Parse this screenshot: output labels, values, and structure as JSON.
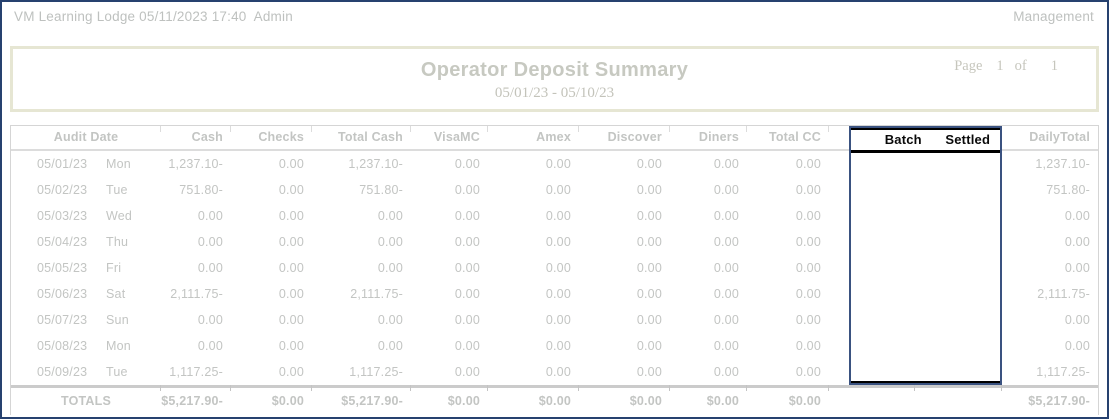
{
  "topbar": {
    "left": "VM Learning Lodge 05/11/2023 17:40  Admin",
    "right": "Management"
  },
  "report_header": {
    "title": "Operator Deposit Summary",
    "date_range": "05/01/23 - 05/10/23",
    "page_label": "Page",
    "page_number": "1",
    "of_label": "of",
    "page_total": "1"
  },
  "table": {
    "columns": [
      {
        "key": "audit_date",
        "label": "Audit Date",
        "align": "center",
        "highlighted": false
      },
      {
        "key": "cash",
        "label": "Cash",
        "align": "right",
        "highlighted": false
      },
      {
        "key": "checks",
        "label": "Checks",
        "align": "right",
        "highlighted": false
      },
      {
        "key": "total_cash",
        "label": "Total Cash",
        "align": "right",
        "highlighted": false
      },
      {
        "key": "visamc",
        "label": "VisaMC",
        "align": "right",
        "highlighted": false
      },
      {
        "key": "amex",
        "label": "Amex",
        "align": "right",
        "highlighted": false
      },
      {
        "key": "discover",
        "label": "Discover",
        "align": "right",
        "highlighted": false
      },
      {
        "key": "diners",
        "label": "Diners",
        "align": "right",
        "highlighted": false
      },
      {
        "key": "total_cc",
        "label": "Total CC",
        "align": "right",
        "highlighted": false
      },
      {
        "key": "batch",
        "label": "Batch",
        "align": "center",
        "highlighted": true
      },
      {
        "key": "settled",
        "label": "Settled",
        "align": "center",
        "highlighted": true
      },
      {
        "key": "daily_total",
        "label": "DailyTotal",
        "align": "right",
        "highlighted": false
      }
    ],
    "rows": [
      {
        "date": "05/01/23",
        "day": "Mon",
        "cash": "1,237.10-",
        "checks": "0.00",
        "total_cash": "1,237.10-",
        "visamc": "0.00",
        "amex": "0.00",
        "discover": "0.00",
        "diners": "0.00",
        "total_cc": "0.00",
        "batch": "",
        "settled": "",
        "daily_total": "1,237.10-"
      },
      {
        "date": "05/02/23",
        "day": "Tue",
        "cash": "751.80-",
        "checks": "0.00",
        "total_cash": "751.80-",
        "visamc": "0.00",
        "amex": "0.00",
        "discover": "0.00",
        "diners": "0.00",
        "total_cc": "0.00",
        "batch": "",
        "settled": "",
        "daily_total": "751.80-"
      },
      {
        "date": "05/03/23",
        "day": "Wed",
        "cash": "0.00",
        "checks": "0.00",
        "total_cash": "0.00",
        "visamc": "0.00",
        "amex": "0.00",
        "discover": "0.00",
        "diners": "0.00",
        "total_cc": "0.00",
        "batch": "",
        "settled": "",
        "daily_total": "0.00"
      },
      {
        "date": "05/04/23",
        "day": "Thu",
        "cash": "0.00",
        "checks": "0.00",
        "total_cash": "0.00",
        "visamc": "0.00",
        "amex": "0.00",
        "discover": "0.00",
        "diners": "0.00",
        "total_cc": "0.00",
        "batch": "",
        "settled": "",
        "daily_total": "0.00"
      },
      {
        "date": "05/05/23",
        "day": "Fri",
        "cash": "0.00",
        "checks": "0.00",
        "total_cash": "0.00",
        "visamc": "0.00",
        "amex": "0.00",
        "discover": "0.00",
        "diners": "0.00",
        "total_cc": "0.00",
        "batch": "",
        "settled": "",
        "daily_total": "0.00"
      },
      {
        "date": "05/06/23",
        "day": "Sat",
        "cash": "2,111.75-",
        "checks": "0.00",
        "total_cash": "2,111.75-",
        "visamc": "0.00",
        "amex": "0.00",
        "discover": "0.00",
        "diners": "0.00",
        "total_cc": "0.00",
        "batch": "",
        "settled": "",
        "daily_total": "2,111.75-"
      },
      {
        "date": "05/07/23",
        "day": "Sun",
        "cash": "0.00",
        "checks": "0.00",
        "total_cash": "0.00",
        "visamc": "0.00",
        "amex": "0.00",
        "discover": "0.00",
        "diners": "0.00",
        "total_cc": "0.00",
        "batch": "",
        "settled": "",
        "daily_total": "0.00"
      },
      {
        "date": "05/08/23",
        "day": "Mon",
        "cash": "0.00",
        "checks": "0.00",
        "total_cash": "0.00",
        "visamc": "0.00",
        "amex": "0.00",
        "discover": "0.00",
        "diners": "0.00",
        "total_cc": "0.00",
        "batch": "",
        "settled": "",
        "daily_total": "0.00"
      },
      {
        "date": "05/09/23",
        "day": "Tue",
        "cash": "1,117.25-",
        "checks": "0.00",
        "total_cash": "1,117.25-",
        "visamc": "0.00",
        "amex": "0.00",
        "discover": "0.00",
        "diners": "0.00",
        "total_cc": "0.00",
        "batch": "",
        "settled": "",
        "daily_total": "1,117.25-"
      }
    ],
    "totals": {
      "label": "TOTALS",
      "cash": "$5,217.90-",
      "checks": "$0.00",
      "total_cash": "$5,217.90-",
      "visamc": "$0.00",
      "amex": "$0.00",
      "discover": "$0.00",
      "diners": "$0.00",
      "total_cc": "$0.00",
      "batch": "",
      "settled": "",
      "daily_total": "$5,217.90-"
    }
  },
  "colors": {
    "page_border_navy": "#26416f",
    "header_band_beige": "#e6e6d3",
    "muted_text_gray": "#c3c5c3",
    "highlight_box_navy": "#3a5280",
    "highlight_text_black": "#000000",
    "table_border_gray": "#d5d5d5"
  }
}
